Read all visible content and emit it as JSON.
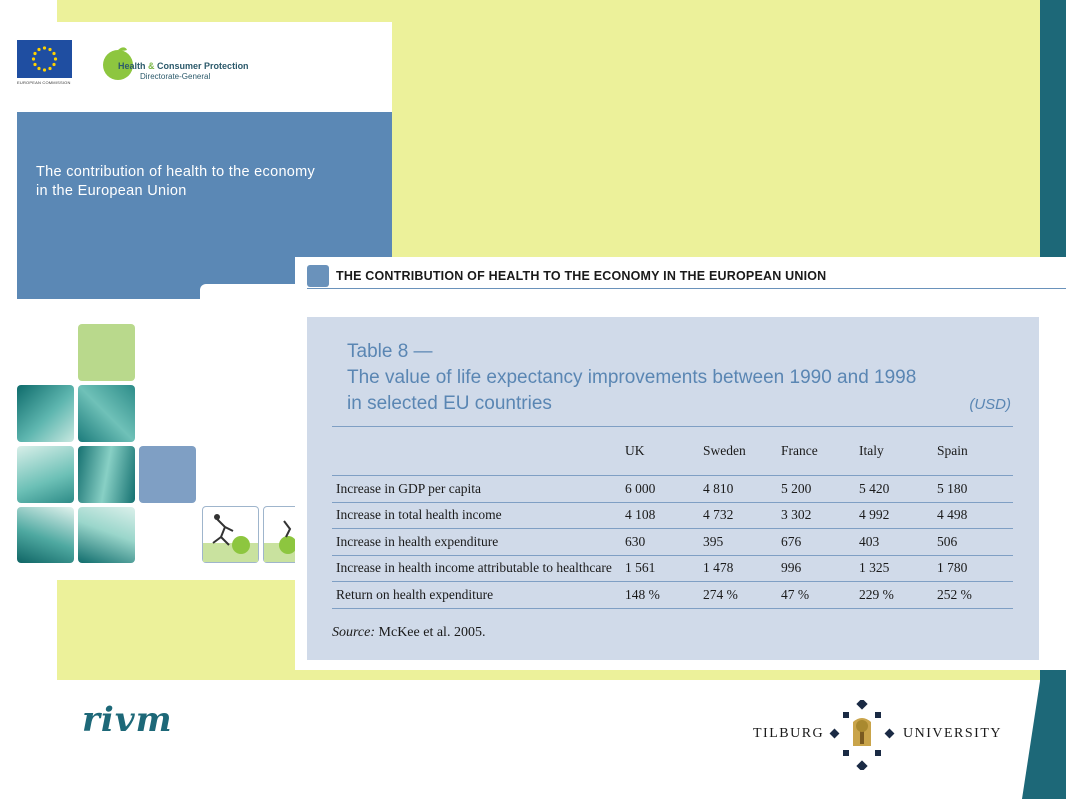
{
  "colors": {
    "background_yellow": "#ecf19a",
    "accent_teal": "#1d6878",
    "cover_blue": "#5b88b5",
    "panel_blue": "#d0dae9",
    "title_blue": "#5a86b3"
  },
  "cover": {
    "eu_caption": "EUROPEAN COMMISSION",
    "dg_name_part1": "Health",
    "dg_name_amp": "&",
    "dg_name_part2": "Consumer Protection",
    "dg_subtitle": "Directorate-General",
    "title_line1": "The contribution of health to the economy",
    "title_line2": "in the European Union"
  },
  "card": {
    "heading": "THE CONTRIBUTION OF HEALTH TO THE ECONOMY IN THE EUROPEAN UNION",
    "table_title_line1": "Table 8 —",
    "table_title_line2": "The value of life expectancy improvements between 1990 and 1998",
    "table_title_line3": "in selected EU countries",
    "unit": "(USD)",
    "columns": [
      "",
      "UK",
      "Sweden",
      "France",
      "Italy",
      "Spain"
    ],
    "rows": [
      {
        "label": "Increase in GDP per capita",
        "values": [
          "6 000",
          "4 810",
          "5 200",
          "5 420",
          "5 180"
        ]
      },
      {
        "label": "Increase in total health income",
        "values": [
          "4 108",
          "4 732",
          "3 302",
          "4 992",
          "4 498"
        ]
      },
      {
        "label": "Increase in health expenditure",
        "values": [
          "630",
          "395",
          "676",
          "403",
          "506"
        ]
      },
      {
        "label": "Increase in health income attributable to healthcare",
        "values": [
          "1 561",
          "1 478",
          "996",
          "1 325",
          "1 780"
        ]
      },
      {
        "label": "Return on health expenditure",
        "values": [
          "148 %",
          "274 %",
          "47 %",
          "229 %",
          "252 %"
        ]
      }
    ],
    "source_label": "Source:",
    "source_text": "McKee et al. 2005."
  },
  "footer": {
    "rivm_logo": "rivm",
    "tilburg_left": "TILBURG",
    "tilburg_right": "UNIVERSITY"
  }
}
